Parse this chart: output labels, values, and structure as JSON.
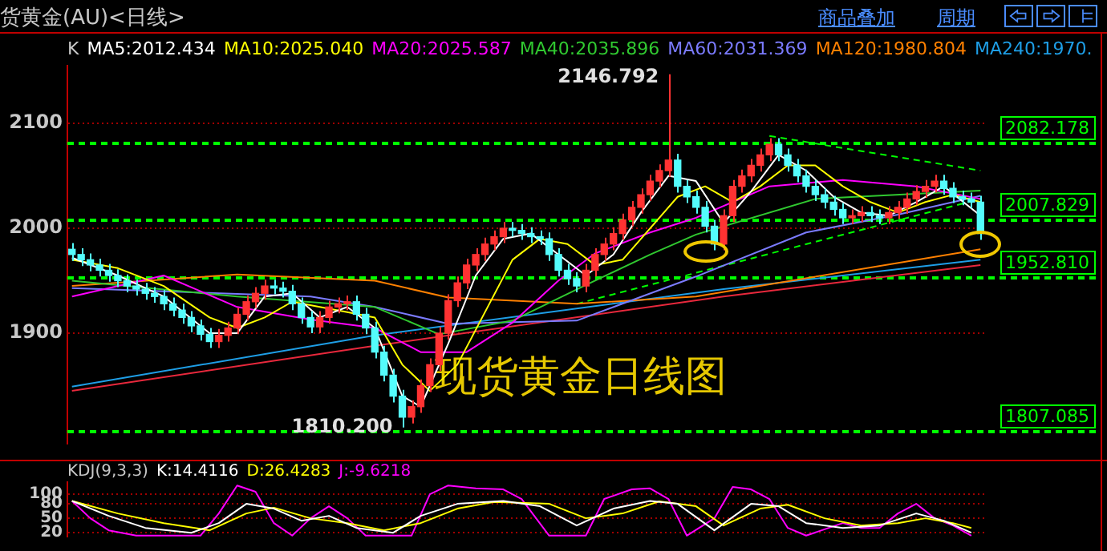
{
  "chart_data": [
    {
      "type": "candlestick",
      "title": "货黄金(AU)<日线>",
      "legend_title": "K",
      "legend": "top",
      "tick_labels": "y",
      "grid": "y",
      "categories": [
        null,
        null,
        null,
        null,
        null,
        null,
        null,
        null,
        null,
        null,
        null,
        null,
        null,
        null,
        null,
        null,
        null,
        null,
        null,
        null,
        null,
        null,
        null,
        null,
        null,
        null,
        null,
        null,
        null,
        null,
        null,
        null,
        null,
        null,
        null,
        null,
        null,
        null,
        null,
        null,
        null,
        null,
        null,
        null,
        null,
        null,
        null,
        null,
        null,
        null,
        null,
        null,
        null,
        null,
        null,
        null,
        null,
        null,
        null,
        null,
        null,
        null,
        null,
        null,
        null,
        null,
        null,
        null,
        null,
        null,
        null,
        null,
        null,
        null,
        null,
        null,
        null,
        null,
        null,
        null,
        null,
        null,
        null,
        null,
        null,
        null,
        null,
        null,
        null,
        null,
        null,
        null,
        null,
        null,
        null,
        null,
        null,
        null,
        null,
        null
      ],
      "ohlc": [
        [
          1980,
          1986,
          1969,
          1975
        ],
        [
          1975,
          1981,
          1964,
          1970
        ],
        [
          1970,
          1976,
          1959,
          1965
        ],
        [
          1965,
          1971,
          1954,
          1960
        ],
        [
          1960,
          1966,
          1949,
          1955
        ],
        [
          1955,
          1961,
          1944,
          1950
        ],
        [
          1950,
          1956,
          1939,
          1945
        ],
        [
          1945,
          1951,
          1936,
          1942
        ],
        [
          1942,
          1948,
          1932,
          1938
        ],
        [
          1938,
          1944,
          1929,
          1935
        ],
        [
          1935,
          1941,
          1922,
          1928
        ],
        [
          1928,
          1934,
          1916,
          1922
        ],
        [
          1922,
          1928,
          1909,
          1915
        ],
        [
          1915,
          1921,
          1901,
          1907
        ],
        [
          1907,
          1913,
          1893,
          1899
        ],
        [
          1899,
          1905,
          1886,
          1892
        ],
        [
          1892,
          1904,
          1886,
          1898
        ],
        [
          1898,
          1911,
          1892,
          1905
        ],
        [
          1905,
          1924,
          1899,
          1918
        ],
        [
          1918,
          1936,
          1912,
          1930
        ],
        [
          1930,
          1944,
          1924,
          1938
        ],
        [
          1938,
          1951,
          1932,
          1945
        ],
        [
          1945,
          1951,
          1937,
          1943
        ],
        [
          1943,
          1949,
          1934,
          1940
        ],
        [
          1940,
          1946,
          1922,
          1928
        ],
        [
          1928,
          1934,
          1909,
          1915
        ],
        [
          1915,
          1921,
          1900,
          1906
        ],
        [
          1906,
          1921,
          1900,
          1915
        ],
        [
          1915,
          1931,
          1909,
          1925
        ],
        [
          1925,
          1934,
          1919,
          1928
        ],
        [
          1928,
          1936,
          1922,
          1930
        ],
        [
          1930,
          1936,
          1912,
          1918
        ],
        [
          1918,
          1924,
          1899,
          1905
        ],
        [
          1905,
          1911,
          1876,
          1882
        ],
        [
          1882,
          1888,
          1854,
          1860
        ],
        [
          1860,
          1866,
          1834,
          1840
        ],
        [
          1840,
          1846,
          1810.2,
          1820
        ],
        [
          1820,
          1836,
          1814,
          1830
        ],
        [
          1830,
          1856,
          1824,
          1850
        ],
        [
          1850,
          1876,
          1844,
          1870
        ],
        [
          1870,
          1906,
          1864,
          1900
        ],
        [
          1900,
          1937,
          1894,
          1931
        ],
        [
          1931,
          1954,
          1925,
          1948
        ],
        [
          1948,
          1971,
          1942,
          1965
        ],
        [
          1965,
          1981,
          1959,
          1975
        ],
        [
          1975,
          1991,
          1969,
          1985
        ],
        [
          1985,
          1998,
          1979,
          1992
        ],
        [
          1992,
          2006,
          1986,
          2000
        ],
        [
          2000,
          2006,
          1992,
          1998
        ],
        [
          1998,
          2004,
          1989,
          1995
        ],
        [
          1995,
          2001,
          1986,
          1992
        ],
        [
          1992,
          1998,
          1984,
          1990
        ],
        [
          1990,
          1996,
          1969,
          1975
        ],
        [
          1975,
          1981,
          1954,
          1960
        ],
        [
          1960,
          1966,
          1946,
          1952
        ],
        [
          1952,
          1958,
          1939,
          1945
        ],
        [
          1945,
          1966,
          1939,
          1960
        ],
        [
          1960,
          1981,
          1954,
          1975
        ],
        [
          1975,
          1991,
          1969,
          1985
        ],
        [
          1985,
          2001,
          1979,
          1995
        ],
        [
          1995,
          2014,
          1989,
          2008
        ],
        [
          2008,
          2026,
          2002,
          2020
        ],
        [
          2020,
          2038,
          2014,
          2032
        ],
        [
          2032,
          2051,
          2026,
          2045
        ],
        [
          2045,
          2061,
          2039,
          2055
        ],
        [
          2055,
          2146.792,
          2049,
          2065
        ],
        [
          2065,
          2071,
          2034,
          2040
        ],
        [
          2040,
          2046,
          2024,
          2030
        ],
        [
          2030,
          2036,
          2014,
          2020
        ],
        [
          2020,
          2026,
          1996,
          2002
        ],
        [
          2002,
          2008,
          1979,
          1985
        ],
        [
          1985,
          2018,
          1979,
          2012
        ],
        [
          2012,
          2046,
          2006,
          2040
        ],
        [
          2040,
          2056,
          2034,
          2050
        ],
        [
          2050,
          2066,
          2044,
          2060
        ],
        [
          2060,
          2076,
          2054,
          2070
        ],
        [
          2070,
          2086,
          2064,
          2080
        ],
        [
          2080,
          2086,
          2064,
          2070
        ],
        [
          2070,
          2076,
          2054,
          2060
        ],
        [
          2060,
          2066,
          2044,
          2050
        ],
        [
          2050,
          2056,
          2034,
          2040
        ],
        [
          2040,
          2046,
          2026,
          2032
        ],
        [
          2032,
          2038,
          2019,
          2025
        ],
        [
          2025,
          2031,
          2012,
          2018
        ],
        [
          2018,
          2024,
          2004,
          2010
        ],
        [
          2010,
          2018,
          2004,
          2012
        ],
        [
          2012,
          2021,
          2006,
          2015
        ],
        [
          2015,
          2021,
          2006,
          2012
        ],
        [
          2012,
          2018,
          2004,
          2010
        ],
        [
          2010,
          2021,
          2004,
          2015
        ],
        [
          2015,
          2026,
          2009,
          2020
        ],
        [
          2020,
          2034,
          2014,
          2028
        ],
        [
          2028,
          2041,
          2022,
          2035
        ],
        [
          2035,
          2046,
          2029,
          2040
        ],
        [
          2040,
          2051,
          2034,
          2045
        ],
        [
          2045,
          2051,
          2032,
          2038
        ],
        [
          2038,
          2044,
          2024,
          2030
        ],
        [
          2030,
          2036,
          2022,
          2028
        ],
        [
          2028,
          2034,
          2019,
          2025
        ],
        [
          2025,
          2031,
          1989,
          1995
        ]
      ],
      "series": [
        {
          "type": "line",
          "name": "MA5:2012.434",
          "color": "#ffffff",
          "values": [
            1972,
            null,
            null,
            null,
            null,
            1955,
            null,
            null,
            null,
            null,
            1935,
            null,
            null,
            null,
            null,
            1900,
            null,
            null,
            1900,
            null,
            null,
            1935,
            null,
            null,
            1938,
            null,
            null,
            1915,
            null,
            null,
            1925,
            null,
            null,
            1905,
            null,
            null,
            1840,
            null,
            1830,
            null,
            null,
            1890,
            null,
            null,
            1955,
            null,
            null,
            1990,
            null,
            null,
            1995,
            null,
            null,
            1975,
            null,
            null,
            1955,
            null,
            null,
            1975,
            null,
            null,
            2015,
            null,
            null,
            2050,
            null,
            null,
            2045,
            null,
            null,
            2005,
            null,
            null,
            2035,
            null,
            null,
            2070,
            null,
            null,
            2055,
            null,
            null,
            2030,
            null,
            null,
            2015,
            null,
            null,
            2012,
            null,
            null,
            2025,
            null,
            null,
            2040,
            null,
            null,
            null,
            2012
          ]
        },
        {
          "type": "line",
          "name": "MA10:2025.040",
          "color": "#ffff00",
          "values": [
            1970,
            null,
            null,
            null,
            null,
            1962,
            null,
            null,
            null,
            null,
            1945,
            null,
            null,
            null,
            null,
            1915,
            null,
            null,
            1905,
            null,
            null,
            1915,
            null,
            null,
            1930,
            null,
            null,
            1925,
            null,
            null,
            1920,
            null,
            null,
            1915,
            null,
            null,
            1870,
            null,
            null,
            1845,
            null,
            null,
            1870,
            null,
            null,
            1920,
            null,
            null,
            1970,
            null,
            null,
            1990,
            null,
            null,
            1985,
            null,
            null,
            1965,
            null,
            null,
            1970,
            null,
            null,
            2000,
            null,
            null,
            2030,
            null,
            null,
            2040,
            null,
            null,
            2025,
            null,
            null,
            2040,
            null,
            null,
            2060,
            null,
            null,
            2060,
            null,
            null,
            2040,
            null,
            null,
            2025,
            null,
            null,
            2015,
            null,
            null,
            2025,
            null,
            null,
            2032,
            null,
            null,
            2025
          ]
        },
        {
          "type": "line",
          "name": "MA20:2025.587",
          "color": "#ff00ff",
          "values": [
            1935,
            null,
            null,
            null,
            null,
            null,
            null,
            null,
            null,
            null,
            1955,
            null,
            null,
            null,
            null,
            null,
            null,
            null,
            1925,
            null,
            null,
            null,
            null,
            null,
            null,
            null,
            1913,
            null,
            null,
            null,
            null,
            null,
            null,
            1905,
            null,
            null,
            null,
            null,
            1882,
            null,
            null,
            null,
            null,
            1882,
            null,
            null,
            null,
            null,
            1910,
            null,
            null,
            null,
            null,
            1950,
            null,
            null,
            null,
            1976,
            null,
            null,
            null,
            null,
            null,
            1996,
            null,
            null,
            null,
            null,
            2010,
            null,
            null,
            null,
            null,
            null,
            null,
            null,
            2040,
            null,
            null,
            null,
            null,
            null,
            null,
            null,
            2046,
            null,
            null,
            null,
            null,
            null,
            null,
            null,
            2040,
            null,
            null,
            null,
            null,
            null,
            null,
            2028
          ]
        },
        {
          "type": "line",
          "name": "MA40:2035.896",
          "color": "#30c830",
          "values": [
            1950,
            null,
            null,
            null,
            null,
            null,
            null,
            null,
            null,
            null,
            null,
            null,
            null,
            null,
            null,
            null,
            null,
            null,
            1935,
            null,
            null,
            null,
            null,
            null,
            null,
            null,
            null,
            null,
            null,
            null,
            null,
            null,
            null,
            1925,
            null,
            null,
            null,
            null,
            null,
            null,
            1899,
            null,
            null,
            null,
            null,
            null,
            null,
            null,
            1912,
            null,
            null,
            null,
            null,
            null,
            null,
            null,
            1946,
            null,
            null,
            null,
            null,
            null,
            null,
            1975,
            null,
            null,
            null,
            null,
            1994,
            null,
            null,
            null,
            null,
            null,
            null,
            null,
            null,
            null,
            null,
            null,
            null,
            2028,
            null,
            null,
            null,
            null,
            null,
            null,
            null,
            null,
            null,
            null,
            null,
            null,
            null,
            null,
            null,
            null,
            null,
            2036
          ]
        },
        {
          "type": "line",
          "name": "MA60:2031.369",
          "color": "#7b7bff",
          "values": [
            1943,
            null,
            null,
            null,
            null,
            null,
            null,
            null,
            null,
            null,
            null,
            null,
            null,
            null,
            null,
            null,
            null,
            null,
            null,
            null,
            null,
            null,
            null,
            null,
            null,
            null,
            1935,
            null,
            null,
            null,
            null,
            null,
            null,
            1925,
            null,
            null,
            null,
            null,
            null,
            null,
            null,
            1909,
            null,
            null,
            null,
            null,
            null,
            null,
            null,
            null,
            null,
            null,
            null,
            null,
            null,
            1912,
            null,
            null,
            null,
            null,
            null,
            null,
            null,
            null,
            null,
            null,
            null,
            null,
            1954,
            null,
            null,
            null,
            null,
            null,
            null,
            null,
            null,
            null,
            null,
            null,
            1996,
            null,
            null,
            null,
            null,
            null,
            null,
            null,
            null,
            null,
            2013,
            null,
            null,
            null,
            null,
            null,
            null,
            null,
            null,
            2031
          ]
        },
        {
          "type": "line",
          "name": "MA120:1980.804",
          "color": "#ff8000",
          "values": [
            1945,
            null,
            null,
            null,
            null,
            null,
            null,
            null,
            null,
            null,
            null,
            null,
            null,
            null,
            null,
            null,
            null,
            null,
            1956,
            null,
            null,
            null,
            null,
            null,
            null,
            null,
            null,
            null,
            null,
            null,
            null,
            null,
            null,
            1950,
            null,
            null,
            null,
            null,
            null,
            null,
            null,
            1934,
            null,
            null,
            null,
            null,
            null,
            null,
            null,
            null,
            null,
            null,
            null,
            null,
            null,
            1928,
            null,
            null,
            null,
            null,
            null,
            null,
            null,
            null,
            null,
            null,
            null,
            null,
            1935,
            null,
            null,
            null,
            null,
            null,
            null,
            null,
            null,
            null,
            null,
            null,
            null,
            null,
            null,
            null,
            null,
            null,
            null,
            null,
            null,
            null,
            null,
            null,
            null,
            null,
            null,
            null,
            null,
            null,
            null,
            1980
          ]
        },
        {
          "type": "line",
          "name": "MA240:1970.",
          "color": "#1e9ee6",
          "values": [
            1849,
            null,
            null,
            null,
            null,
            null,
            null,
            null,
            null,
            null,
            null,
            null,
            null,
            null,
            null,
            null,
            null,
            null,
            null,
            null,
            null,
            null,
            null,
            null,
            null,
            null,
            null,
            null,
            null,
            null,
            null,
            null,
            null,
            1898,
            null,
            null,
            null,
            null,
            null,
            null,
            null,
            null,
            null,
            null,
            null,
            null,
            null,
            null,
            null,
            null,
            null,
            null,
            null,
            null,
            null,
            null,
            null,
            null,
            null,
            null,
            null,
            null,
            null,
            null,
            null,
            null,
            null,
            null,
            null,
            null,
            null,
            1942,
            null,
            null,
            null,
            null,
            null,
            null,
            null,
            null,
            null,
            null,
            null,
            null,
            null,
            null,
            null,
            null,
            null,
            null,
            null,
            null,
            null,
            null,
            null,
            null,
            null,
            null,
            null,
            1970
          ]
        },
        {
          "type": "line",
          "color": "#e8283c",
          "values": [
            1845,
            null,
            null,
            null,
            null,
            null,
            null,
            null,
            null,
            null,
            null,
            null,
            null,
            null,
            null,
            null,
            null,
            null,
            null,
            null,
            null,
            null,
            null,
            null,
            null,
            null,
            null,
            null,
            null,
            null,
            null,
            null,
            null,
            1888,
            null,
            null,
            null,
            null,
            null,
            null,
            null,
            null,
            null,
            null,
            null,
            null,
            null,
            null,
            null,
            null,
            null,
            null,
            null,
            null,
            null,
            null,
            null,
            null,
            null,
            null,
            null,
            null,
            null,
            null,
            null,
            null,
            null,
            null,
            null,
            null,
            null,
            1935,
            null,
            null,
            null,
            null,
            null,
            null,
            null,
            null,
            null,
            null,
            null,
            null,
            null,
            null,
            null,
            null,
            null,
            null,
            null,
            null,
            null,
            null,
            null,
            null,
            null,
            null,
            null,
            1965
          ]
        },
        {
          "type": "line",
          "color": "#00ff00",
          "line_style": "dashed",
          "values": [
            null,
            null,
            null,
            null,
            null,
            null,
            null,
            null,
            null,
            null,
            null,
            null,
            null,
            null,
            null,
            null,
            null,
            null,
            null,
            null,
            null,
            null,
            null,
            null,
            null,
            null,
            null,
            null,
            null,
            null,
            null,
            null,
            null,
            null,
            null,
            null,
            null,
            null,
            null,
            null,
            null,
            null,
            null,
            null,
            null,
            null,
            null,
            null,
            null,
            null,
            null,
            null,
            null,
            null,
            null,
            null,
            null,
            null,
            null,
            null,
            null,
            null,
            null,
            null,
            null,
            null,
            null,
            null,
            null,
            null,
            null,
            null,
            null,
            null,
            null,
            null,
            2088,
            null,
            null,
            null,
            null,
            null,
            null,
            null,
            null,
            null,
            null,
            null,
            null,
            null,
            null,
            null,
            null,
            null,
            null,
            null,
            null,
            null,
            null,
            2055
          ]
        },
        {
          "type": "line",
          "color": "#00ff00",
          "line_style": "dashed",
          "values": [
            null,
            null,
            null,
            null,
            null,
            null,
            null,
            null,
            null,
            null,
            null,
            null,
            null,
            null,
            null,
            null,
            null,
            null,
            null,
            null,
            null,
            null,
            null,
            null,
            null,
            null,
            null,
            null,
            null,
            null,
            null,
            null,
            null,
            null,
            null,
            null,
            null,
            null,
            null,
            null,
            null,
            null,
            null,
            null,
            null,
            null,
            null,
            null,
            null,
            null,
            null,
            null,
            null,
            null,
            null,
            1928,
            null,
            null,
            null,
            null,
            null,
            null,
            null,
            null,
            null,
            null,
            null,
            null,
            null,
            null,
            null,
            null,
            null,
            null,
            null,
            null,
            null,
            null,
            null,
            null,
            null,
            null,
            null,
            null,
            null,
            null,
            null,
            null,
            null,
            null,
            null,
            null,
            null,
            null,
            null,
            null,
            null,
            null,
            null,
            2028
          ]
        }
      ],
      "ylim": [
        1795,
        2155
      ],
      "yticks": [
        1900,
        2000,
        2100
      ],
      "ref_lines": [
        {
          "axis": "y",
          "value": 2082.178,
          "label": "2082.178",
          "color": "#00ff00",
          "line_style": "dashed"
        },
        {
          "axis": "y",
          "value": 2007.829,
          "label": "2007.829",
          "color": "#00ff00",
          "line_style": "dashed"
        },
        {
          "axis": "y",
          "value": 1952.81,
          "label": "1952.810",
          "color": "#00ff00",
          "line_style": "dashed"
        },
        {
          "axis": "y",
          "value": 1807.085,
          "label": "1807.085",
          "color": "#00ff00",
          "line_style": "dashed"
        }
      ],
      "annotations": [
        "现货黄金日线图",
        "商品叠加",
        "周期",
        "2146.792",
        {
          "text": "1810.200",
          "y": 1810.2
        }
      ]
    },
    {
      "type": "line",
      "title": "KDJ(9,3,3)",
      "tick_labels": "y",
      "grid": "y",
      "ylim": [
        12,
        125
      ],
      "yticks": [
        20,
        50,
        80,
        100
      ],
      "marker": "none",
      "categories": [
        null,
        null,
        null,
        null,
        null,
        null,
        null,
        null,
        null,
        null,
        null,
        null,
        null,
        null,
        null,
        null,
        null,
        null,
        null,
        null,
        null,
        null,
        null,
        null,
        null,
        null,
        null,
        null,
        null,
        null,
        null,
        null,
        null,
        null,
        null,
        null,
        null,
        null,
        null,
        null,
        null,
        null,
        null,
        null,
        null,
        null,
        null,
        null,
        null,
        null,
        null,
        null,
        null,
        null,
        null,
        null,
        null,
        null,
        null,
        null,
        null,
        null,
        null,
        null,
        null,
        null,
        null,
        null,
        null,
        null,
        null,
        null,
        null,
        null,
        null,
        null,
        null,
        null,
        null,
        null,
        null,
        null,
        null,
        null,
        null,
        null,
        null,
        null,
        null,
        null,
        null,
        null,
        null,
        null,
        null,
        null,
        null,
        null,
        null,
        null
      ],
      "series": [
        {
          "name": "K:14.4116",
          "color": "#ffffff",
          "values": [
            86,
            null,
            null,
            null,
            55,
            null,
            null,
            null,
            30,
            null,
            null,
            null,
            null,
            20,
            null,
            null,
            40,
            null,
            null,
            80,
            null,
            null,
            70,
            null,
            null,
            45,
            null,
            null,
            55,
            null,
            null,
            30,
            null,
            null,
            null,
            20,
            null,
            null,
            55,
            null,
            null,
            null,
            80,
            null,
            null,
            null,
            null,
            86,
            null,
            null,
            null,
            75,
            null,
            null,
            null,
            35,
            null,
            null,
            null,
            70,
            null,
            null,
            null,
            86,
            null,
            null,
            80,
            null,
            null,
            null,
            25,
            null,
            null,
            null,
            80,
            null,
            null,
            75,
            null,
            null,
            40,
            null,
            null,
            null,
            30,
            null,
            null,
            null,
            35,
            null,
            null,
            null,
            60,
            null,
            null,
            45,
            null,
            null,
            20,
            null
          ]
        },
        {
          "name": "D:26.4283",
          "color": "#ffff00",
          "values": [
            86,
            null,
            null,
            null,
            null,
            60,
            null,
            null,
            null,
            null,
            40,
            null,
            null,
            null,
            null,
            25,
            null,
            null,
            null,
            60,
            null,
            null,
            72,
            null,
            null,
            null,
            50,
            null,
            null,
            null,
            40,
            null,
            null,
            null,
            25,
            null,
            null,
            null,
            40,
            null,
            null,
            null,
            70,
            null,
            null,
            null,
            84,
            null,
            null,
            null,
            null,
            null,
            80,
            null,
            null,
            null,
            50,
            null,
            null,
            null,
            60,
            null,
            null,
            null,
            85,
            null,
            null,
            null,
            75,
            null,
            null,
            35,
            null,
            null,
            null,
            70,
            null,
            null,
            78,
            null,
            null,
            null,
            50,
            null,
            null,
            null,
            35,
            null,
            null,
            null,
            40,
            null,
            null,
            50,
            null,
            null,
            40,
            null,
            30,
            null
          ]
        },
        {
          "name": "J:-9.6218",
          "color": "#ff00ff",
          "values": [
            86,
            null,
            50,
            null,
            25,
            null,
            null,
            14,
            null,
            null,
            null,
            null,
            null,
            null,
            14,
            null,
            60,
            null,
            118,
            null,
            105,
            null,
            40,
            null,
            14,
            null,
            50,
            null,
            75,
            null,
            50,
            null,
            14,
            null,
            null,
            null,
            null,
            14,
            null,
            100,
            null,
            118,
            null,
            null,
            112,
            null,
            null,
            110,
            null,
            90,
            null,
            null,
            14,
            null,
            null,
            null,
            14,
            null,
            90,
            null,
            null,
            110,
            null,
            112,
            null,
            90,
            null,
            14,
            null,
            null,
            50,
            null,
            115,
            null,
            110,
            null,
            90,
            null,
            30,
            null,
            14,
            null,
            null,
            null,
            40,
            null,
            30,
            null,
            30,
            null,
            60,
            null,
            80,
            null,
            50,
            null,
            35,
            null,
            14,
            null
          ]
        }
      ]
    }
  ]
}
